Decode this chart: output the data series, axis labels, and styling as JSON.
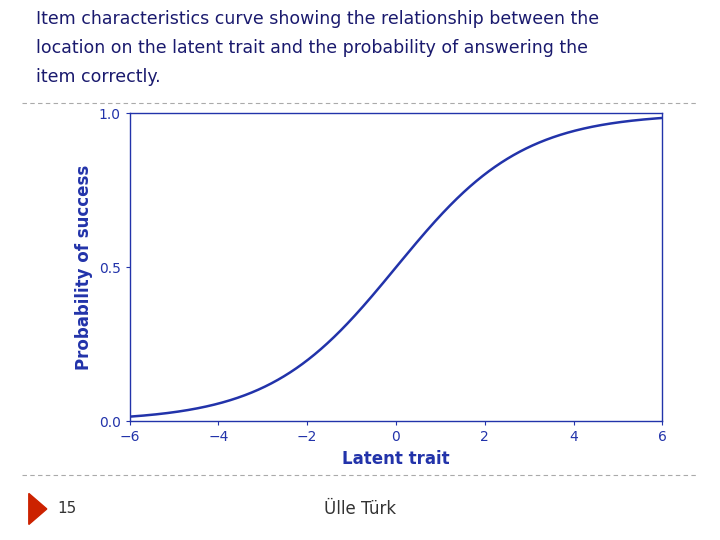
{
  "title_line1": "Item characteristics curve showing the relationship between the",
  "title_line2": "location on the latent trait and the probability of answering the",
  "title_line3": "item correctly.",
  "xlabel": "Latent trait",
  "ylabel": "Probability of success",
  "curve_color": "#2233AA",
  "axis_color": "#2233AA",
  "label_color": "#2233AA",
  "title_color": "#1a1a6e",
  "xlim": [
    -6,
    6
  ],
  "ylim": [
    0.0,
    1.0
  ],
  "xticks": [
    -6,
    -4,
    -2,
    0,
    2,
    4,
    6
  ],
  "yticks": [
    0.0,
    0.5,
    1.0
  ],
  "line_width": 1.8,
  "background_color": "#ffffff",
  "slide_bg": "#ffffff",
  "footer_text": "Ülle Türk",
  "slide_number": "15",
  "arrow_color": "#cc2200",
  "b_param": 0.0,
  "a_param": 0.7
}
